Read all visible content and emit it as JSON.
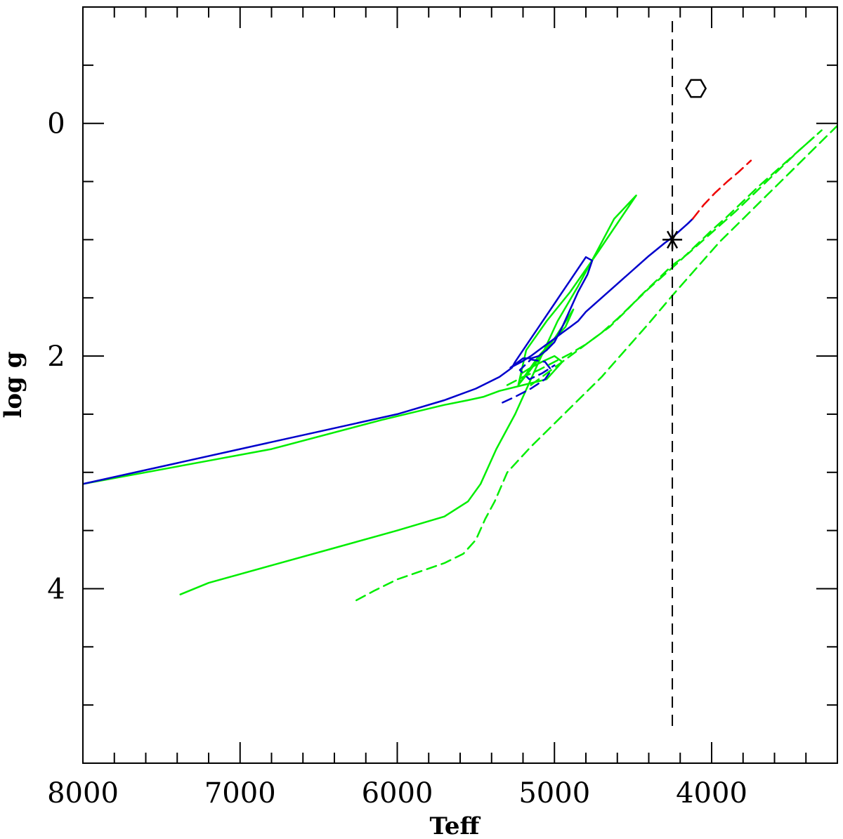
{
  "chart_data": {
    "type": "line",
    "title": "",
    "xlabel": "Teff",
    "ylabel": "log g",
    "xlim": [
      8000,
      3200
    ],
    "ylim": [
      5.5,
      -1.0
    ],
    "x_major_ticks": [
      8000,
      7000,
      6000,
      5000,
      4000
    ],
    "x_tick_labels": [
      "8000",
      "7000",
      "6000",
      "5000",
      "4000"
    ],
    "y_major_ticks": [
      0,
      2,
      4
    ],
    "y_tick_labels": [
      "0",
      "2",
      "4"
    ],
    "grid": false,
    "legend": "none",
    "colors": {
      "blue": "#0000cc",
      "green": "#00ee00",
      "red": "#ee0000",
      "black": "#000000"
    },
    "series": [
      {
        "color": "green",
        "style": "solid",
        "x": [
          7380,
          7200,
          6800,
          6400,
          6000,
          5700,
          5550,
          5470,
          5420,
          5370,
          5250,
          5100,
          4980,
          4850,
          4730,
          4620,
          4480,
          4720,
          4900,
          5050,
          5180,
          5230,
          5100,
          5000,
          4930,
          4880,
          5000,
          5170,
          5230,
          5210,
          5150,
          5080,
          5000,
          4950,
          5050,
          5200,
          5350,
          5450,
          5550,
          5700,
          6100,
          6800,
          7200,
          8000
        ],
        "y": [
          4.05,
          3.95,
          3.8,
          3.65,
          3.5,
          3.38,
          3.25,
          3.1,
          2.95,
          2.8,
          2.5,
          2.05,
          1.7,
          1.4,
          1.1,
          0.82,
          0.62,
          1.1,
          1.45,
          1.7,
          1.95,
          2.25,
          2.0,
          1.85,
          1.75,
          1.6,
          1.85,
          2.15,
          2.25,
          2.15,
          2.1,
          2.05,
          2.0,
          2.05,
          2.2,
          2.25,
          2.3,
          2.35,
          2.38,
          2.42,
          2.55,
          2.8,
          2.9,
          3.1
        ]
      },
      {
        "color": "blue",
        "style": "solid",
        "x": [
          8000,
          7500,
          7000,
          6500,
          6000,
          5700,
          5500,
          5350,
          5290,
          5270,
          5250,
          5200,
          5150,
          5100,
          5050,
          5000,
          4950,
          4900,
          4850,
          4800,
          4760,
          4790,
          4850,
          4900,
          4950,
          5000,
          5050,
          5100,
          5150,
          5200,
          5230,
          5280,
          5210,
          5150,
          5100,
          5050,
          5000,
          4950,
          4900,
          4850,
          4800,
          4700,
          4600,
          4500,
          4400,
          4300,
          4250,
          4200,
          4150,
          4120
        ],
        "y": [
          3.1,
          2.95,
          2.8,
          2.65,
          2.5,
          2.38,
          2.28,
          2.18,
          2.12,
          2.1,
          2.05,
          1.95,
          1.85,
          1.75,
          1.65,
          1.55,
          1.45,
          1.35,
          1.25,
          1.15,
          1.18,
          1.3,
          1.45,
          1.6,
          1.75,
          1.88,
          1.95,
          2.0,
          2.02,
          2.02,
          2.05,
          2.1,
          2.05,
          2.0,
          1.95,
          1.9,
          1.85,
          1.8,
          1.75,
          1.7,
          1.62,
          1.5,
          1.38,
          1.26,
          1.14,
          1.03,
          0.98,
          0.92,
          0.86,
          0.82
        ]
      },
      {
        "color": "blue",
        "style": "dashed",
        "x": [
          5330,
          5250,
          5150,
          5060,
          5020,
          5060,
          5150,
          5220,
          5160,
          5080,
          5000
        ],
        "y": [
          2.4,
          2.35,
          2.28,
          2.2,
          2.12,
          2.05,
          2.03,
          2.12,
          2.2,
          2.15,
          2.08
        ]
      },
      {
        "color": "red",
        "style": "dashed",
        "x": [
          4120,
          4050,
          3980,
          3900,
          3830,
          3750
        ],
        "y": [
          0.82,
          0.7,
          0.6,
          0.5,
          0.42,
          0.32
        ]
      },
      {
        "color": "green",
        "style": "dashed",
        "x": [
          6260,
          6150,
          6000,
          5850,
          5700,
          5580,
          5500,
          5440,
          5380,
          5300,
          5150,
          5000,
          4850,
          4700,
          4550,
          4400,
          4250,
          4100,
          3950,
          3800,
          3650,
          3500,
          3350,
          3200
        ],
        "y": [
          4.1,
          4.02,
          3.92,
          3.85,
          3.78,
          3.7,
          3.58,
          3.4,
          3.25,
          3.0,
          2.78,
          2.58,
          2.38,
          2.18,
          1.95,
          1.72,
          1.48,
          1.25,
          1.02,
          0.82,
          0.62,
          0.42,
          0.22,
          0.02
        ]
      },
      {
        "color": "green",
        "style": "dashed",
        "x": [
          5300,
          5200,
          5100,
          5000,
          4900,
          4800,
          4700,
          4600,
          4500,
          4400,
          4300,
          4200,
          4100,
          4000,
          3900,
          3800,
          3700,
          3600,
          3500,
          3400,
          3300
        ],
        "y": [
          2.25,
          2.18,
          2.12,
          2.05,
          1.98,
          1.9,
          1.8,
          1.68,
          1.55,
          1.42,
          1.3,
          1.18,
          1.05,
          0.92,
          0.8,
          0.67,
          0.54,
          0.42,
          0.3,
          0.18,
          0.06
        ]
      },
      {
        "color": "green",
        "style": "dashed",
        "x": [
          5150,
          5050,
          4950,
          4850,
          4750,
          4650,
          4550,
          4450,
          4350,
          4250,
          4150,
          4050,
          3950,
          3850,
          3750,
          3650,
          3550,
          3450,
          3350
        ],
        "y": [
          2.25,
          2.15,
          2.05,
          1.95,
          1.85,
          1.75,
          1.62,
          1.48,
          1.35,
          1.22,
          1.12,
          1.0,
          0.88,
          0.76,
          0.63,
          0.5,
          0.37,
          0.24,
          0.12
        ]
      }
    ],
    "reference_line": {
      "x": 4250,
      "color": "black",
      "style": "dashed"
    },
    "markers": [
      {
        "symbol": "asterisk",
        "x": 4250,
        "y": 1.0
      },
      {
        "symbol": "hexagon",
        "x": 4100,
        "y": -0.3
      }
    ]
  }
}
